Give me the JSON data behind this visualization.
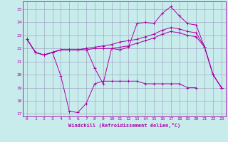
{
  "xlabel": "Windchill (Refroidissement éolien,°C)",
  "background_color": "#c8ecec",
  "grid_color": "#9999bb",
  "line_color": "#aa00aa",
  "x": [
    0,
    1,
    2,
    3,
    4,
    5,
    6,
    7,
    8,
    9,
    10,
    11,
    12,
    13,
    14,
    15,
    16,
    17,
    18,
    19,
    20,
    21,
    22,
    23
  ],
  "s_top": [
    22.7,
    21.7,
    21.5,
    21.7,
    21.9,
    21.9,
    21.9,
    22.0,
    20.5,
    19.3,
    22.0,
    21.9,
    22.1,
    23.9,
    24.0,
    23.9,
    24.7,
    25.2,
    24.5,
    23.9,
    23.8,
    22.1,
    20.0,
    19.0
  ],
  "s_mid2": [
    22.7,
    21.7,
    21.5,
    21.7,
    21.9,
    21.9,
    21.9,
    22.0,
    22.1,
    22.2,
    22.3,
    22.5,
    22.6,
    22.7,
    22.9,
    23.1,
    23.4,
    23.6,
    23.5,
    23.3,
    23.2,
    22.1,
    20.0,
    19.0
  ],
  "s_mid1": [
    22.7,
    21.7,
    21.5,
    21.7,
    21.9,
    21.9,
    21.9,
    21.9,
    22.0,
    22.0,
    22.0,
    22.1,
    22.2,
    22.4,
    22.6,
    22.8,
    23.1,
    23.3,
    23.2,
    23.0,
    22.9,
    22.1,
    20.0,
    19.0
  ],
  "s_low": [
    22.7,
    21.7,
    21.5,
    21.7,
    19.9,
    17.2,
    17.1,
    17.8,
    19.3,
    19.5,
    19.5,
    19.5,
    19.5,
    19.5,
    19.3,
    19.3,
    19.3,
    19.3,
    19.3,
    19.0,
    19.0,
    null,
    null,
    19.0
  ],
  "ylim": [
    16.8,
    25.6
  ],
  "xlim": [
    -0.5,
    23.5
  ],
  "yticks": [
    17,
    18,
    19,
    20,
    21,
    22,
    23,
    24,
    25
  ],
  "xticks": [
    0,
    1,
    2,
    3,
    4,
    5,
    6,
    7,
    8,
    9,
    10,
    11,
    12,
    13,
    14,
    15,
    16,
    17,
    18,
    19,
    20,
    21,
    22,
    23
  ]
}
